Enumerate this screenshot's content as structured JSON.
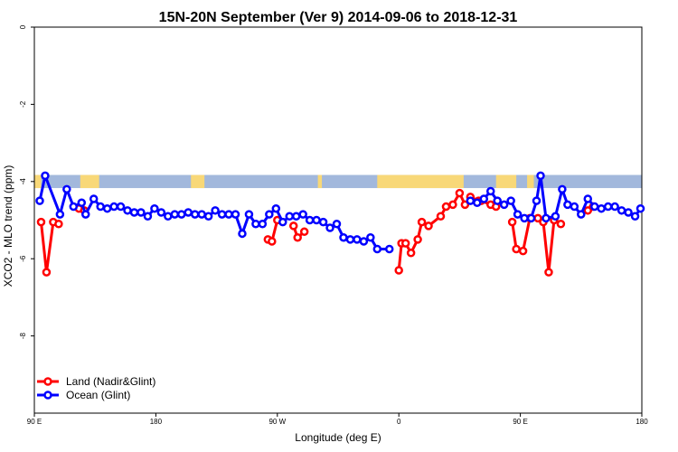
{
  "chart_data": {
    "type": "line",
    "title": "15N-20N September (Ver 9)   2014-09-06 to 2018-12-31",
    "xlabel": "Longitude (deg E)",
    "ylabel": "XCO2 - MLO trend (ppm)",
    "x_tick_labels": [
      "90 E",
      "180",
      "90 W",
      "0",
      "90 E",
      "180"
    ],
    "x_tick_values": [
      90,
      180,
      270,
      360,
      450,
      540
    ],
    "xlim": [
      90,
      540
    ],
    "y_tick_labels": [
      "0",
      "-2",
      "-4",
      "-6",
      "-8"
    ],
    "y_tick_values": [
      0,
      -2,
      -4,
      -6,
      -8
    ],
    "ylim": [
      -10,
      0
    ],
    "grid": false,
    "legend_position": "bottom-left",
    "land_band": {
      "y_range": [
        -4.17,
        -3.83
      ],
      "ocean_color": "#a2b8dc",
      "land_color": "#f8d878",
      "land_segments": [
        [
          90,
          95
        ],
        [
          124,
          138
        ],
        [
          206,
          216
        ],
        [
          300,
          303
        ],
        [
          344,
          408
        ],
        [
          432,
          447
        ],
        [
          455,
          460
        ]
      ]
    },
    "series": [
      {
        "name": "Land (Nadir&Glint)",
        "color": "#ff0000",
        "points": [
          [
            95,
            -5.05
          ],
          [
            99,
            -6.35
          ],
          [
            104,
            -5.05
          ],
          [
            108,
            -5.1
          ],
          [
            123,
            -4.7
          ],
          [
            127,
            -4.75
          ],
          [
            263,
            -5.5
          ],
          [
            266,
            -5.55
          ],
          [
            270,
            -5.0
          ],
          [
            282,
            -5.15
          ],
          [
            285,
            -5.45
          ],
          [
            290,
            -5.3
          ],
          [
            360,
            -6.3
          ],
          [
            362,
            -5.6
          ],
          [
            365,
            -5.6
          ],
          [
            369,
            -5.85
          ],
          [
            374,
            -5.5
          ],
          [
            377,
            -5.05
          ],
          [
            382,
            -5.15
          ],
          [
            391,
            -4.9
          ],
          [
            395,
            -4.65
          ],
          [
            400,
            -4.6
          ],
          [
            405,
            -4.3
          ],
          [
            409,
            -4.6
          ],
          [
            413,
            -4.4
          ],
          [
            419,
            -4.5
          ],
          [
            421,
            -4.5
          ],
          [
            428,
            -4.6
          ],
          [
            432,
            -4.65
          ],
          [
            444,
            -5.05
          ],
          [
            447,
            -5.75
          ],
          [
            452,
            -5.8
          ],
          [
            457,
            -4.95
          ],
          [
            463,
            -4.95
          ],
          [
            467,
            -5.05
          ],
          [
            471,
            -6.35
          ],
          [
            475,
            -5.0
          ],
          [
            480,
            -5.1
          ],
          [
            500,
            -4.75
          ],
          [
            504,
            -4.65
          ]
        ]
      },
      {
        "name": "Ocean (Glint)",
        "color": "#0000ff",
        "points": [
          [
            94,
            -4.5
          ],
          [
            98,
            -3.85
          ],
          [
            109,
            -4.85
          ],
          [
            114,
            -4.2
          ],
          [
            119,
            -4.65
          ],
          [
            125,
            -4.55
          ],
          [
            128,
            -4.85
          ],
          [
            134,
            -4.45
          ],
          [
            139,
            -4.65
          ],
          [
            144,
            -4.7
          ],
          [
            149,
            -4.65
          ],
          [
            154,
            -4.65
          ],
          [
            159,
            -4.75
          ],
          [
            164,
            -4.8
          ],
          [
            169,
            -4.8
          ],
          [
            174,
            -4.9
          ],
          [
            179,
            -4.7
          ],
          [
            184,
            -4.8
          ],
          [
            189,
            -4.9
          ],
          [
            194,
            -4.85
          ],
          [
            199,
            -4.85
          ],
          [
            204,
            -4.8
          ],
          [
            209,
            -4.85
          ],
          [
            214,
            -4.85
          ],
          [
            219,
            -4.9
          ],
          [
            224,
            -4.75
          ],
          [
            229,
            -4.85
          ],
          [
            234,
            -4.85
          ],
          [
            239,
            -4.85
          ],
          [
            244,
            -5.35
          ],
          [
            249,
            -4.85
          ],
          [
            254,
            -5.1
          ],
          [
            259,
            -5.1
          ],
          [
            264,
            -4.85
          ],
          [
            269,
            -4.7
          ],
          [
            274,
            -5.05
          ],
          [
            279,
            -4.9
          ],
          [
            284,
            -4.9
          ],
          [
            289,
            -4.85
          ],
          [
            294,
            -5.0
          ],
          [
            299,
            -5.0
          ],
          [
            304,
            -5.05
          ],
          [
            309,
            -5.2
          ],
          [
            314,
            -5.1
          ],
          [
            319,
            -5.45
          ],
          [
            324,
            -5.5
          ],
          [
            329,
            -5.5
          ],
          [
            334,
            -5.55
          ],
          [
            339,
            -5.45
          ],
          [
            344,
            -5.75
          ],
          [
            353,
            -5.75
          ],
          [
            413,
            -4.5
          ],
          [
            418,
            -4.55
          ],
          [
            423,
            -4.45
          ],
          [
            428,
            -4.25
          ],
          [
            433,
            -4.5
          ],
          [
            438,
            -4.6
          ],
          [
            443,
            -4.5
          ],
          [
            448,
            -4.85
          ],
          [
            453,
            -4.95
          ],
          [
            458,
            -4.95
          ],
          [
            462,
            -4.5
          ],
          [
            465,
            -3.85
          ],
          [
            469,
            -4.95
          ],
          [
            476,
            -4.9
          ],
          [
            481,
            -4.2
          ],
          [
            485,
            -4.6
          ],
          [
            490,
            -4.65
          ],
          [
            495,
            -4.85
          ],
          [
            500,
            -4.45
          ],
          [
            505,
            -4.65
          ],
          [
            510,
            -4.7
          ],
          [
            515,
            -4.65
          ],
          [
            520,
            -4.65
          ],
          [
            525,
            -4.75
          ],
          [
            530,
            -4.8
          ],
          [
            535,
            -4.9
          ],
          [
            539,
            -4.7
          ]
        ]
      }
    ]
  }
}
